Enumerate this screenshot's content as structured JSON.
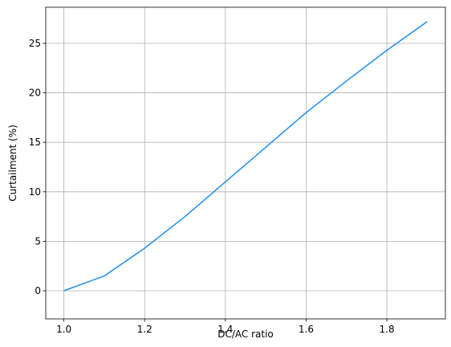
{
  "chart_data": {
    "type": "line",
    "x": [
      1.0,
      1.1,
      1.2,
      1.3,
      1.4,
      1.5,
      1.6,
      1.7,
      1.8,
      1.9
    ],
    "values": [
      0,
      1.5,
      4.3,
      7.5,
      11.0,
      14.5,
      18.0,
      21.2,
      24.3,
      27.2
    ],
    "color": "#2190ef",
    "x_label": "DC/AC ratio",
    "y_label": "Curtailment (%)",
    "xlim": [
      0.955,
      1.945
    ],
    "ylim": [
      -2.84,
      28.65
    ],
    "xticks": [
      {
        "value": 1,
        "label": "1.0"
      },
      1.2,
      1.4,
      1.6,
      1.8
    ],
    "yticks": [
      0,
      5,
      10,
      15,
      20,
      25
    ],
    "grid": true
  }
}
